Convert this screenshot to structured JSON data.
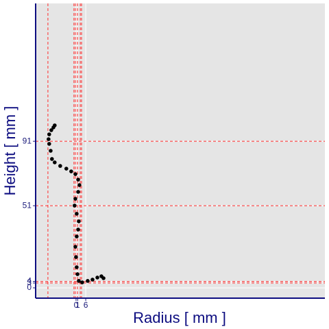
{
  "chart_data": {
    "type": "scatter",
    "x_label": "Radius   [ mm ]",
    "y_label": "Height   [ mm ]",
    "xlim": [
      -25,
      154
    ],
    "ylim": [
      -6.4,
      176.6
    ],
    "xticks": [
      0,
      1,
      6
    ],
    "yticks": [
      0,
      3,
      4,
      51,
      91
    ],
    "grid": true,
    "color": "#000000",
    "vlines": [
      -17.4,
      -1.3,
      -0.4,
      0.9,
      2.6,
      3.4
    ],
    "hlines": [
      3,
      4,
      51,
      91
    ],
    "line_color": "#ff2a2a",
    "x": [
      -13.2,
      -14.0,
      -15.3,
      -16.6,
      -17.0,
      -16.6,
      -15.7,
      -14.9,
      -13.2,
      -9.8,
      -6.0,
      -3.0,
      -0.4,
      1.3,
      2.1,
      1.3,
      -0.4,
      -0.9,
      0.4,
      1.7,
      1.3,
      0.4,
      -0.4,
      0,
      0.4,
      0.9,
      1.7,
      3.8,
      7.2,
      10.2,
      13.2,
      15.7,
      17.0
    ],
    "values": [
      100.9,
      99.6,
      97.9,
      95.3,
      92.3,
      89.4,
      85.1,
      80.0,
      77.9,
      75.7,
      74.0,
      72.3,
      70.6,
      67.2,
      63.8,
      59.6,
      55.3,
      51.1,
      46.0,
      41.3,
      36.2,
      31.9,
      25.5,
      19.1,
      12.8,
      8.5,
      4.3,
      3.4,
      4.3,
      5.1,
      6.4,
      7.2,
      6.0
    ]
  }
}
